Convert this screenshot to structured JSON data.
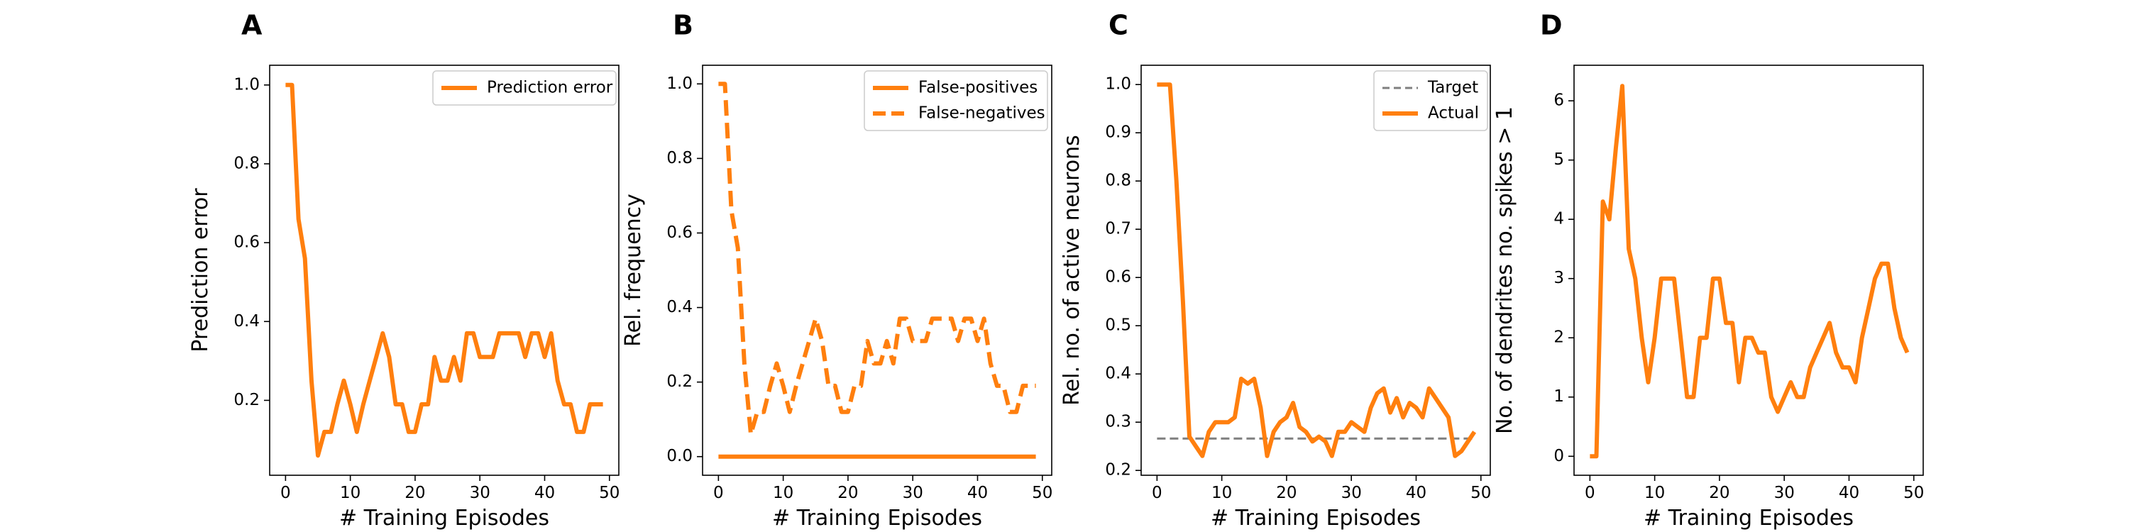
{
  "colors": {
    "series": "#ff7f0e",
    "target": "#7f7f7f",
    "axis": "#000000",
    "legend_border": "#cccccc"
  },
  "chart_data": [
    {
      "type": "line",
      "panel": "A",
      "xlabel": "# Training Episodes",
      "ylabel": "Prediction error",
      "xlim": [
        -2.45,
        51.45
      ],
      "ylim": [
        0.01,
        1.05
      ],
      "xticks": [
        0,
        10,
        20,
        30,
        40,
        50
      ],
      "yticks": [
        0.2,
        0.4,
        0.6,
        0.8,
        1.0
      ],
      "ytick_labels": [
        "0.2",
        "0.4",
        "0.6",
        "0.8",
        "1.0"
      ],
      "legend_position": "upper-right",
      "series": [
        {
          "name": "Prediction error",
          "style": "solid",
          "x": [
            0,
            1,
            2,
            3,
            4,
            5,
            6,
            7,
            8,
            9,
            10,
            11,
            12,
            13,
            14,
            15,
            16,
            17,
            18,
            19,
            20,
            21,
            22,
            23,
            24,
            25,
            26,
            27,
            28,
            29,
            30,
            31,
            32,
            33,
            34,
            35,
            36,
            37,
            38,
            39,
            40,
            41,
            42,
            43,
            44,
            45,
            46,
            47,
            48,
            49
          ],
          "y": [
            1.0,
            1.0,
            0.66,
            0.56,
            0.25,
            0.06,
            0.12,
            0.12,
            0.19,
            0.25,
            0.19,
            0.12,
            0.19,
            0.25,
            0.31,
            0.37,
            0.31,
            0.19,
            0.19,
            0.12,
            0.12,
            0.19,
            0.19,
            0.31,
            0.25,
            0.25,
            0.31,
            0.25,
            0.37,
            0.37,
            0.31,
            0.31,
            0.31,
            0.37,
            0.37,
            0.37,
            0.37,
            0.31,
            0.37,
            0.37,
            0.31,
            0.37,
            0.25,
            0.19,
            0.19,
            0.12,
            0.12,
            0.19,
            0.19,
            0.19
          ]
        }
      ]
    },
    {
      "type": "line",
      "panel": "B",
      "xlabel": "# Training Episodes",
      "ylabel": "Rel. frequency",
      "xlim": [
        -2.45,
        51.45
      ],
      "ylim": [
        -0.05,
        1.05
      ],
      "xticks": [
        0,
        10,
        20,
        30,
        40,
        50
      ],
      "yticks": [
        0.0,
        0.2,
        0.4,
        0.6,
        0.8,
        1.0
      ],
      "ytick_labels": [
        "0.0",
        "0.2",
        "0.4",
        "0.6",
        "0.8",
        "1.0"
      ],
      "legend_position": "upper-right",
      "series": [
        {
          "name": "False-positives",
          "style": "solid",
          "x": [
            0,
            1,
            2,
            3,
            4,
            5,
            6,
            7,
            8,
            9,
            10,
            11,
            12,
            13,
            14,
            15,
            16,
            17,
            18,
            19,
            20,
            21,
            22,
            23,
            24,
            25,
            26,
            27,
            28,
            29,
            30,
            31,
            32,
            33,
            34,
            35,
            36,
            37,
            38,
            39,
            40,
            41,
            42,
            43,
            44,
            45,
            46,
            47,
            48,
            49
          ],
          "y": [
            0,
            0,
            0,
            0,
            0,
            0,
            0,
            0,
            0,
            0,
            0,
            0,
            0,
            0,
            0,
            0,
            0,
            0,
            0,
            0,
            0,
            0,
            0,
            0,
            0,
            0,
            0,
            0,
            0,
            0,
            0,
            0,
            0,
            0,
            0,
            0,
            0,
            0,
            0,
            0,
            0,
            0,
            0,
            0,
            0,
            0,
            0,
            0,
            0,
            0
          ]
        },
        {
          "name": "False-negatives",
          "style": "dashed",
          "x": [
            0,
            1,
            2,
            3,
            4,
            5,
            6,
            7,
            8,
            9,
            10,
            11,
            12,
            13,
            14,
            15,
            16,
            17,
            18,
            19,
            20,
            21,
            22,
            23,
            24,
            25,
            26,
            27,
            28,
            29,
            30,
            31,
            32,
            33,
            34,
            35,
            36,
            37,
            38,
            39,
            40,
            41,
            42,
            43,
            44,
            45,
            46,
            47,
            48,
            49
          ],
          "y": [
            1.0,
            1.0,
            0.66,
            0.56,
            0.25,
            0.06,
            0.12,
            0.12,
            0.19,
            0.25,
            0.19,
            0.12,
            0.19,
            0.25,
            0.31,
            0.37,
            0.31,
            0.19,
            0.19,
            0.12,
            0.12,
            0.19,
            0.19,
            0.31,
            0.25,
            0.25,
            0.31,
            0.25,
            0.37,
            0.37,
            0.31,
            0.31,
            0.31,
            0.37,
            0.37,
            0.37,
            0.37,
            0.31,
            0.37,
            0.37,
            0.31,
            0.37,
            0.25,
            0.19,
            0.19,
            0.12,
            0.12,
            0.19,
            0.19,
            0.19
          ]
        }
      ]
    },
    {
      "type": "line",
      "panel": "C",
      "xlabel": "# Training Episodes",
      "ylabel": "Rel. no. of active neurons",
      "xlim": [
        -2.45,
        51.45
      ],
      "ylim": [
        0.19,
        1.04
      ],
      "xticks": [
        0,
        10,
        20,
        30,
        40,
        50
      ],
      "yticks": [
        0.2,
        0.3,
        0.4,
        0.5,
        0.6,
        0.7,
        0.8,
        0.9,
        1.0
      ],
      "ytick_labels": [
        "0.2",
        "0.3",
        "0.4",
        "0.5",
        "0.6",
        "0.7",
        "0.8",
        "0.9",
        "1.0"
      ],
      "legend_position": "upper-right",
      "series": [
        {
          "name": "Target",
          "style": "dashed",
          "x": [
            0,
            49
          ],
          "y": [
            0.266,
            0.266
          ]
        },
        {
          "name": "Actual",
          "style": "solid",
          "x": [
            0,
            1,
            2,
            3,
            4,
            5,
            6,
            7,
            8,
            9,
            10,
            11,
            12,
            13,
            14,
            15,
            16,
            17,
            18,
            19,
            20,
            21,
            22,
            23,
            24,
            25,
            26,
            27,
            28,
            29,
            30,
            31,
            32,
            33,
            34,
            35,
            36,
            37,
            38,
            39,
            40,
            41,
            42,
            43,
            44,
            45,
            46,
            47,
            48,
            49
          ],
          "y": [
            1.0,
            1.0,
            1.0,
            0.8,
            0.55,
            0.27,
            0.25,
            0.23,
            0.28,
            0.3,
            0.3,
            0.3,
            0.31,
            0.39,
            0.38,
            0.39,
            0.33,
            0.23,
            0.28,
            0.3,
            0.31,
            0.34,
            0.29,
            0.28,
            0.26,
            0.27,
            0.26,
            0.23,
            0.28,
            0.28,
            0.3,
            0.29,
            0.28,
            0.33,
            0.36,
            0.37,
            0.32,
            0.35,
            0.31,
            0.34,
            0.33,
            0.31,
            0.37,
            0.35,
            0.33,
            0.31,
            0.23,
            0.24,
            0.26,
            0.28
          ]
        }
      ]
    },
    {
      "type": "line",
      "panel": "D",
      "xlabel": "# Training Episodes",
      "ylabel": "No. of dendrites no. spikes > 1",
      "xlim": [
        -2.45,
        51.45
      ],
      "ylim": [
        -0.32,
        6.6
      ],
      "xticks": [
        0,
        10,
        20,
        30,
        40,
        50
      ],
      "yticks": [
        0,
        1,
        2,
        3,
        4,
        5,
        6
      ],
      "ytick_labels": [
        "0",
        "1",
        "2",
        "3",
        "4",
        "5",
        "6"
      ],
      "series": [
        {
          "name": "",
          "style": "solid",
          "x": [
            0,
            1,
            2,
            3,
            4,
            5,
            6,
            7,
            8,
            9,
            10,
            11,
            12,
            13,
            14,
            15,
            16,
            17,
            18,
            19,
            20,
            21,
            22,
            23,
            24,
            25,
            26,
            27,
            28,
            29,
            30,
            31,
            32,
            33,
            34,
            35,
            36,
            37,
            38,
            39,
            40,
            41,
            42,
            43,
            44,
            45,
            46,
            47,
            48,
            49
          ],
          "y": [
            0,
            0,
            4.3,
            4.0,
            5.2,
            6.25,
            3.5,
            3.0,
            2.0,
            1.25,
            2.0,
            3.0,
            3.0,
            3.0,
            2.0,
            1.0,
            1.0,
            2.0,
            2.0,
            3.0,
            3.0,
            2.25,
            2.25,
            1.25,
            2.0,
            2.0,
            1.75,
            1.75,
            1.0,
            0.75,
            1.0,
            1.25,
            1.0,
            1.0,
            1.5,
            1.75,
            2.0,
            2.25,
            1.75,
            1.5,
            1.5,
            1.25,
            2.0,
            2.5,
            3.0,
            3.25,
            3.25,
            2.5,
            2.0,
            1.75
          ]
        }
      ]
    }
  ]
}
